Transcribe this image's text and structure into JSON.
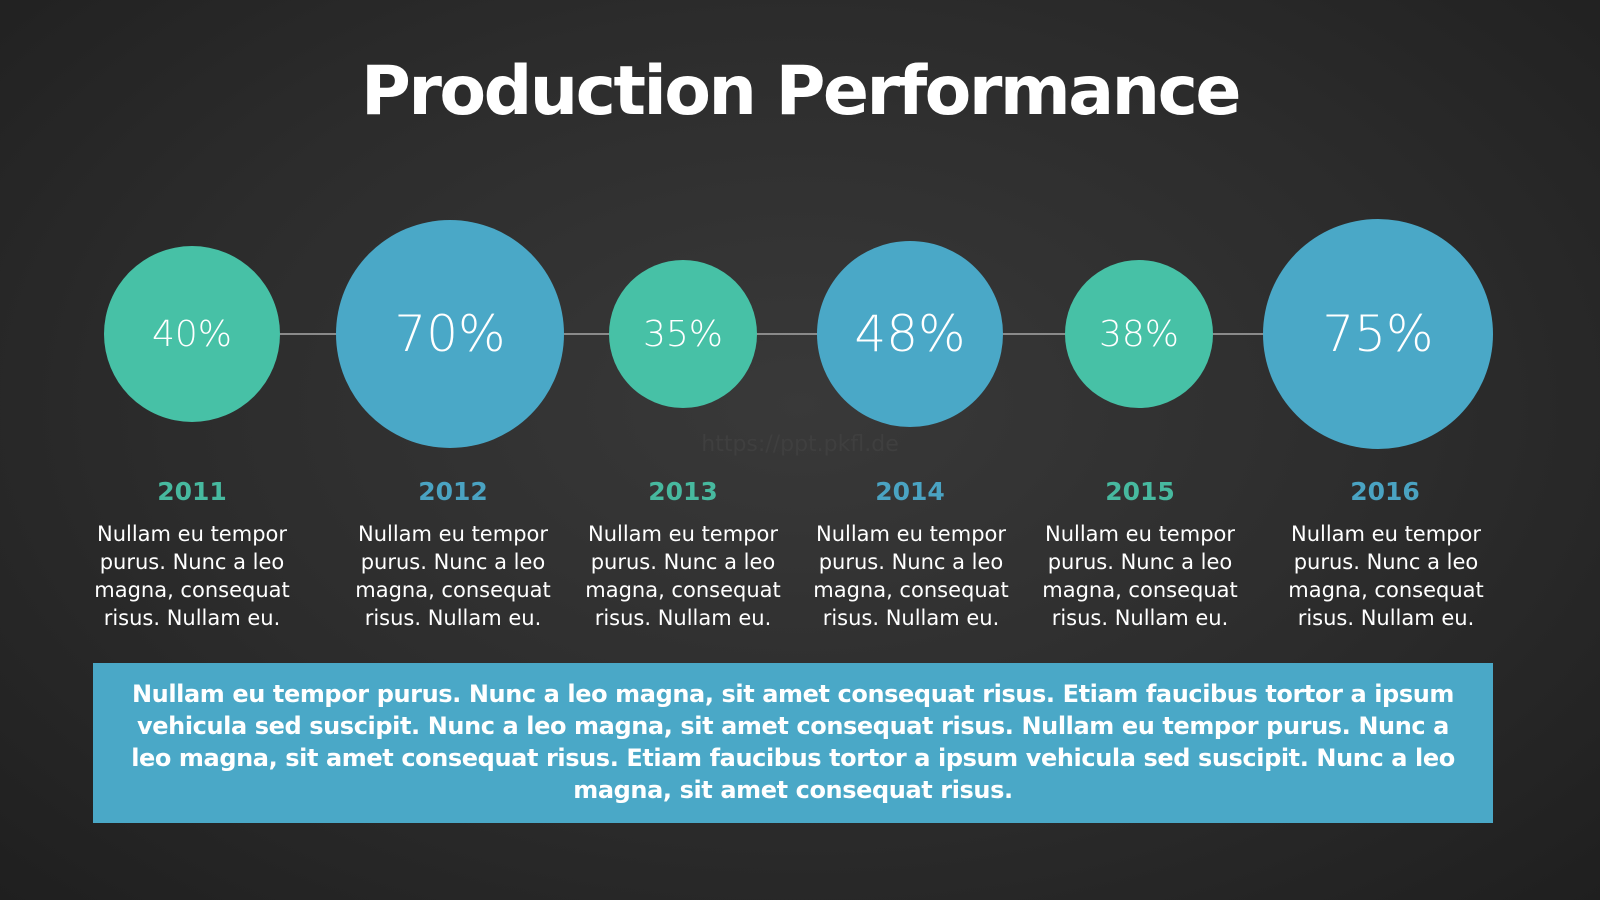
{
  "slide": {
    "title": "Production Performance",
    "watermark": "https://ppt.pkfl.de",
    "footer_text": "Nullam eu tempor purus. Nunc a leo magna, sit amet consequat risus. Etiam faucibus tortor a ipsum vehicula sed suscipit. Nunc a leo magna, sit amet consequat risus. Nullam eu tempor purus. Nunc a leo magna, sit amet consequat risus. Etiam faucibus tortor a ipsum vehicula sed suscipit. Nunc a leo magna, sit amet consequat risus."
  },
  "colors": {
    "teal": "#47c1a6",
    "blue": "#4aa8c7",
    "teal_year": "#47b99f",
    "blue_year": "#4aa3c2"
  },
  "timeline": [
    {
      "year": "2011",
      "value_label": "40%",
      "value": 40,
      "color": "teal",
      "desc": "Nullam eu tempor purus. Nunc a leo magna, consequat risus. Nullam eu."
    },
    {
      "year": "2012",
      "value_label": "70%",
      "value": 70,
      "color": "blue",
      "desc": "Nullam eu tempor purus. Nunc a leo magna, consequat risus. Nullam eu."
    },
    {
      "year": "2013",
      "value_label": "35%",
      "value": 35,
      "color": "teal",
      "desc": "Nullam eu tempor purus. Nunc a leo magna, consequat risus. Nullam eu."
    },
    {
      "year": "2014",
      "value_label": "48%",
      "value": 48,
      "color": "blue",
      "desc": "Nullam eu tempor purus. Nunc a leo magna, consequat risus. Nullam eu."
    },
    {
      "year": "2015",
      "value_label": "38%",
      "value": 38,
      "color": "teal",
      "desc": "Nullam eu tempor purus. Nunc a leo magna, consequat risus. Nullam eu."
    },
    {
      "year": "2016",
      "value_label": "75%",
      "value": 75,
      "color": "blue",
      "desc": "Nullam eu tempor purus. Nunc a leo magna, consequat risus. Nullam eu."
    }
  ]
}
